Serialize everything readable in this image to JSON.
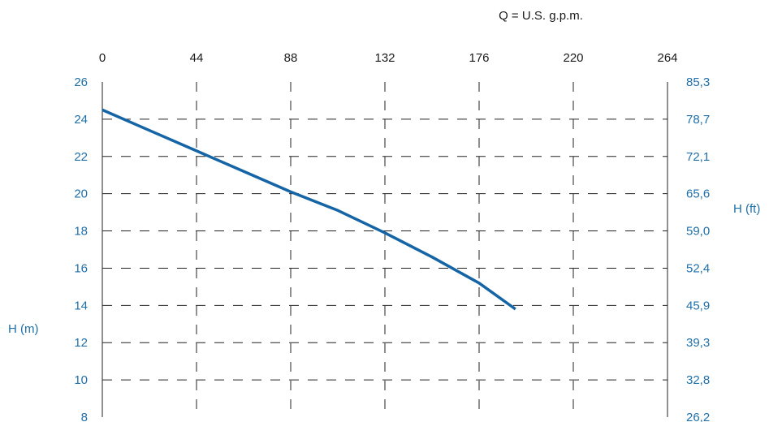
{
  "chart_data": {
    "type": "line",
    "x_unit_label": "Q = U.S. g.p.m.",
    "x_ticks": [
      "0",
      "44",
      "88",
      "132",
      "176",
      "220",
      "264"
    ],
    "x_range": [
      0,
      264
    ],
    "y_left_label": "H (m)",
    "y_left_ticks": [
      "26",
      "24",
      "22",
      "20",
      "18",
      "16",
      "14",
      "12",
      "10",
      "8"
    ],
    "y_left_range": [
      8,
      26
    ],
    "y_right_label": "H (ft)",
    "y_right_ticks": [
      "85,3",
      "78,7",
      "72,1",
      "65,6",
      "59,0",
      "52,4",
      "45,9",
      "39,3",
      "32,8",
      "26,2"
    ],
    "grid": true,
    "series": [
      {
        "color": "#1565a6",
        "x": [
          0,
          22,
          44,
          66,
          88,
          110,
          132,
          154,
          176,
          193
        ],
        "y": [
          24.5,
          23.4,
          22.3,
          21.2,
          20.1,
          19.1,
          17.9,
          16.6,
          15.2,
          13.8
        ]
      }
    ]
  }
}
